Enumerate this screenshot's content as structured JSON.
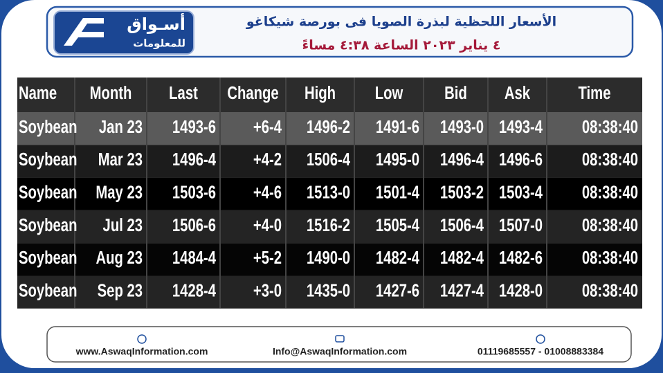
{
  "header": {
    "logo": {
      "name": "أسـواق",
      "tagline": "للمعلومات"
    },
    "title": "الأسعار اللحظية لبذرة الصويا فى بورصة شيكاغو",
    "subtitle": "٤ يناير ٢٠٢٣ الساعة ٤:٣٨ مساءً"
  },
  "table": {
    "columns": [
      "Name",
      "Month",
      "Last",
      "Change",
      "High",
      "Low",
      "Bid",
      "Ask",
      "Time"
    ],
    "rows": [
      [
        "Soybean",
        "Jan 23",
        "1493-6",
        {
          "text": "+6-4",
          "color": "#3fe33f"
        },
        "1496-2",
        "1491-6",
        "1493-0",
        "1493-4",
        {
          "text": "08:38:40",
          "color": "#f2c94c"
        }
      ],
      [
        "Soybean",
        "Mar 23",
        {
          "text": "1496-4",
          "color": "#f5d77e"
        },
        {
          "text": "+4-2",
          "color": "#3fe33f"
        },
        "1506-4",
        "1495-0",
        "1496-4",
        "1496-6",
        {
          "text": "08:38:40",
          "color": "#f2c94c"
        }
      ],
      [
        "Soybean",
        "May 23",
        "1503-6",
        {
          "text": "+4-6",
          "color": "#3fe33f"
        },
        "1513-0",
        "1501-4",
        {
          "text": "1503-2",
          "color": "#f5d77e"
        },
        "1503-4",
        {
          "text": "08:38:40",
          "color": "#f2c94c"
        }
      ],
      [
        "Soybean",
        "Jul 23",
        "1506-6",
        {
          "text": "+4-0",
          "color": "#3fe33f"
        },
        "1516-2",
        "1505-4",
        "1506-4",
        {
          "text": "1507-0",
          "color": "#f5d77e"
        },
        {
          "text": "08:38:40",
          "color": "#f2c94c"
        }
      ],
      [
        "Soybean",
        "Aug 23",
        "1484-4",
        {
          "text": "+5-2",
          "color": "#3fe33f"
        },
        "1490-0",
        "1482-4",
        {
          "text": "1482-4",
          "color": "#f5d77e"
        },
        {
          "text": "1482-6",
          "color": "#f5d77e"
        },
        {
          "text": "08:38:40",
          "color": "#f2c94c"
        }
      ],
      [
        "Soybean",
        "Sep 23",
        "1428-4",
        {
          "text": "+3-0",
          "color": "#3fe33f"
        },
        "1435-0",
        "1427-6",
        {
          "text": "1427-4",
          "color": "#f5d77e"
        },
        "1428-0",
        {
          "text": "08:38:40",
          "color": "#f2c94c"
        }
      ]
    ]
  },
  "footer": {
    "website": "www.AswaqInformation.com",
    "email": "Info@AswaqInformation.com",
    "phone": "01119685557 - 01008883384"
  }
}
